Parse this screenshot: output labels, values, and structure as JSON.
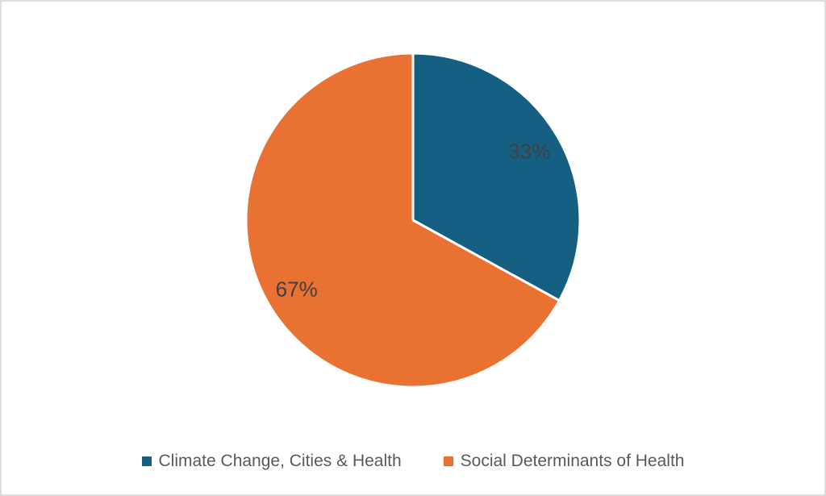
{
  "canvas": {
    "background": "#ffffff",
    "frame_border_color": "#dcdcdc"
  },
  "chart_data": {
    "type": "pie",
    "title": "",
    "categories": [
      "Climate Change, Cities & Health",
      "Social Determinants of Health"
    ],
    "values": [
      33,
      67
    ],
    "data_labels": [
      "33%",
      "67%"
    ],
    "colors": [
      "#156082",
      "#E97132"
    ],
    "slice_border_color": "#ffffff",
    "start_angle_deg": 0,
    "direction": "clockwise",
    "data_label_color": "#404040",
    "legend_position": "bottom",
    "legend_text_color": "#595959",
    "legend_marker_shape": "square"
  }
}
